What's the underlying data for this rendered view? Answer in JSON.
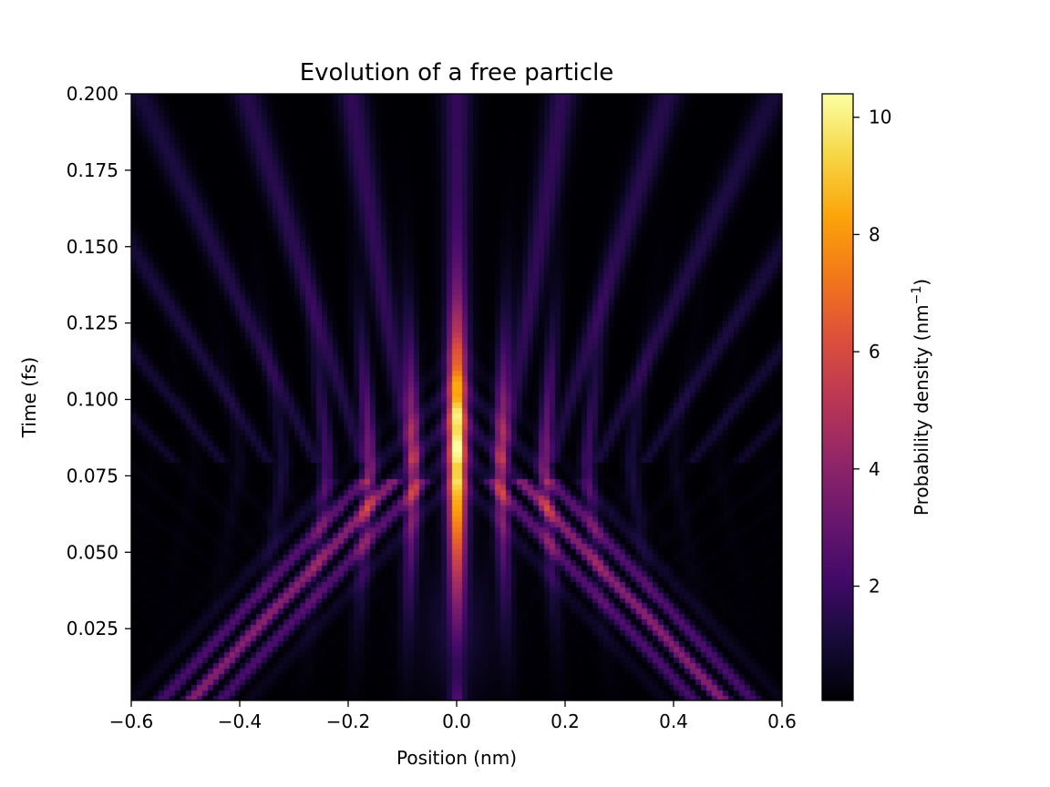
{
  "chart_data": {
    "type": "heatmap",
    "title": "Evolution of a free particle",
    "xlabel": "Position (nm)",
    "ylabel": "Time (fs)",
    "xlim": [
      -0.6,
      0.6
    ],
    "ylim": [
      0.0015,
      0.2
    ],
    "x_ticks": [
      -0.6,
      -0.4,
      -0.2,
      0.0,
      0.2,
      0.4,
      0.6
    ],
    "x_tick_labels": [
      "−0.6",
      "−0.4",
      "−0.2",
      "0.0",
      "0.2",
      "0.4",
      "0.6"
    ],
    "y_ticks": [
      0.025,
      0.05,
      0.075,
      0.1,
      0.125,
      0.15,
      0.175,
      0.2
    ],
    "y_tick_labels": [
      "0.025",
      "0.050",
      "0.075",
      "0.100",
      "0.125",
      "0.150",
      "0.175",
      "0.200"
    ],
    "colormap": "inferno",
    "colorbar": {
      "label": "Probability density (nm",
      "label_sup": "−1",
      "label_end": ")",
      "range": [
        0.05,
        10.4
      ],
      "ticks": [
        2,
        4,
        6,
        8,
        10
      ],
      "tick_labels": [
        "2",
        "4",
        "6",
        "8",
        "10"
      ]
    },
    "grid": false
  }
}
